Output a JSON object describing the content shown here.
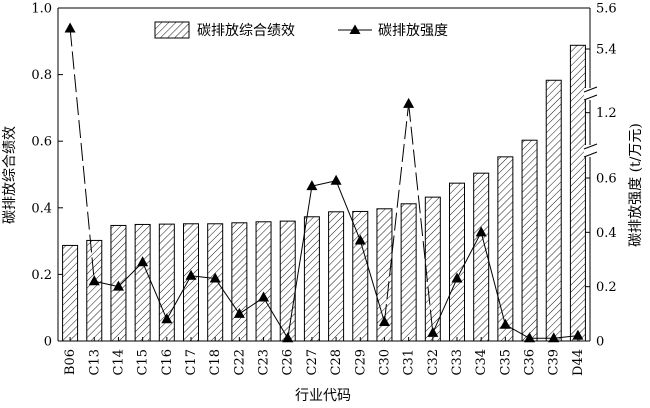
{
  "chart_data": {
    "type": "bar",
    "xlabel": "行业代码",
    "categories": [
      "B06",
      "C13",
      "C14",
      "C15",
      "C16",
      "C17",
      "C18",
      "C22",
      "C23",
      "C26",
      "C27",
      "C28",
      "C29",
      "C30",
      "C31",
      "C32",
      "C33",
      "C34",
      "C35",
      "C36",
      "C39",
      "D44"
    ],
    "series": [
      {
        "name": "碳排放综合绩效",
        "type": "bar",
        "axis": "left",
        "pattern": "diagonal-hatch",
        "values": [
          0.287,
          0.302,
          0.347,
          0.35,
          0.351,
          0.352,
          0.352,
          0.355,
          0.358,
          0.36,
          0.373,
          0.388,
          0.389,
          0.397,
          0.412,
          0.432,
          0.474,
          0.504,
          0.553,
          0.603,
          0.783,
          0.888
        ]
      },
      {
        "name": "碳排放强度",
        "type": "line",
        "marker": "triangle",
        "axis": "right",
        "values": [
          5.5,
          0.22,
          0.2,
          0.29,
          0.08,
          0.24,
          0.23,
          0.1,
          0.16,
          0.01,
          0.57,
          0.59,
          0.37,
          0.07,
          1.25,
          0.03,
          0.23,
          0.4,
          0.06,
          0.01,
          0.01,
          0.02
        ]
      }
    ],
    "y_left": {
      "label": "碳排放综合绩效",
      "ylim": [
        0,
        1.0
      ],
      "ticks": [
        "0",
        "0.2",
        "0.4",
        "0.6",
        "0.8",
        "1.0"
      ]
    },
    "y_right": {
      "label": "碳排放强度 (t/万元)",
      "broken": true,
      "segments": [
        {
          "range": [
            0,
            0.6
          ],
          "ticks": [
            "0",
            "0.2",
            "0.4",
            "0.6"
          ]
        },
        {
          "range": [
            1.0,
            1.3
          ],
          "ticks": [
            "1.2"
          ]
        },
        {
          "range": [
            5.2,
            5.6
          ],
          "ticks": [
            "5.4",
            "5.6"
          ]
        }
      ]
    },
    "legend": {
      "placement": "top-center"
    },
    "grid": false
  },
  "colors": {
    "ink": "#000000",
    "bar_fill": "#ffffff",
    "background": "#ffffff"
  }
}
